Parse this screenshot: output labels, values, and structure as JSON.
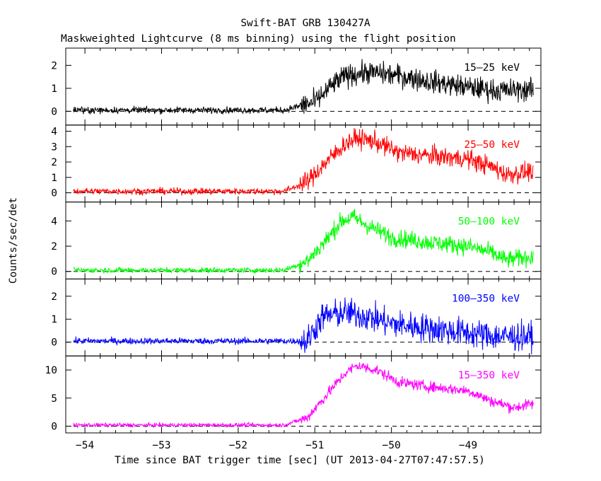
{
  "chart_data": {
    "type": "line",
    "title": "Swift-BAT GRB 130427A",
    "subtitle": "Maskweighted Lightcurve (8 ms binning) using the flight position",
    "xlabel": "Time since BAT trigger time [sec] (UT 2013-04-27T07:47:57.5)",
    "ylabel": "Counts/sec/det",
    "xlim": [
      -54.25,
      -48.05
    ],
    "xticks": [
      -54,
      -53,
      -52,
      -51,
      -50,
      -49
    ],
    "xtick_labels": [
      "−54",
      "−53",
      "−52",
      "−51",
      "−50",
      "−49"
    ],
    "data_x_range": [
      -54.15,
      -48.15
    ],
    "panels": [
      {
        "name": "15–25 keV",
        "color": "#000000",
        "ylim": [
          -0.6,
          2.75
        ],
        "yticks": [
          0,
          1,
          2
        ],
        "profile": [
          [
            -54.15,
            0.05
          ],
          [
            -51.4,
            0.05
          ],
          [
            -51.0,
            0.4
          ],
          [
            -50.75,
            1.2
          ],
          [
            -50.6,
            1.55
          ],
          [
            -50.3,
            1.7
          ],
          [
            -49.9,
            1.55
          ],
          [
            -49.5,
            1.3
          ],
          [
            -49.0,
            1.05
          ],
          [
            -48.6,
            0.9
          ],
          [
            -48.15,
            0.95
          ]
        ],
        "noise_pre": 0.1,
        "noise_post": 0.35
      },
      {
        "name": "25–50 keV",
        "color": "#ff0000",
        "ylim": [
          -0.6,
          4.4
        ],
        "yticks": [
          0,
          1,
          2,
          3,
          4
        ],
        "profile": [
          [
            -54.15,
            0.1
          ],
          [
            -51.4,
            0.1
          ],
          [
            -51.1,
            0.7
          ],
          [
            -50.85,
            2.0
          ],
          [
            -50.6,
            3.2
          ],
          [
            -50.45,
            3.55
          ],
          [
            -50.2,
            3.3
          ],
          [
            -49.9,
            2.6
          ],
          [
            -49.5,
            2.4
          ],
          [
            -49.0,
            2.2
          ],
          [
            -48.7,
            1.7
          ],
          [
            -48.5,
            1.2
          ],
          [
            -48.15,
            1.4
          ]
        ],
        "noise_pre": 0.15,
        "noise_post": 0.45
      },
      {
        "name": "50–100 keV",
        "color": "#00ff00",
        "ylim": [
          -0.6,
          5.5
        ],
        "yticks": [
          0,
          2,
          4
        ],
        "profile": [
          [
            -54.15,
            0.1
          ],
          [
            -51.4,
            0.1
          ],
          [
            -51.1,
            0.8
          ],
          [
            -50.85,
            2.5
          ],
          [
            -50.65,
            4.0
          ],
          [
            -50.5,
            4.3
          ],
          [
            -50.3,
            3.6
          ],
          [
            -50.0,
            2.7
          ],
          [
            -49.5,
            2.3
          ],
          [
            -49.0,
            2.0
          ],
          [
            -48.7,
            1.5
          ],
          [
            -48.5,
            0.9
          ],
          [
            -48.15,
            1.2
          ]
        ],
        "noise_pre": 0.15,
        "noise_post": 0.5
      },
      {
        "name": "100–350 keV",
        "color": "#0000ff",
        "ylim": [
          -0.6,
          2.75
        ],
        "yticks": [
          0,
          1,
          2
        ],
        "profile": [
          [
            -54.15,
            0.05
          ],
          [
            -51.1,
            0.05
          ],
          [
            -51.0,
            0.6
          ],
          [
            -50.9,
            1.1
          ],
          [
            -50.6,
            1.3
          ],
          [
            -50.3,
            1.1
          ],
          [
            -50.0,
            0.8
          ],
          [
            -49.5,
            0.6
          ],
          [
            -49.0,
            0.4
          ],
          [
            -48.6,
            0.25
          ],
          [
            -48.15,
            0.25
          ]
        ],
        "noise_pre": 0.1,
        "noise_post": 0.45
      },
      {
        "name": "15–350 keV",
        "color": "#ff00ff",
        "ylim": [
          -1.2,
          12.5
        ],
        "yticks": [
          0,
          5,
          10
        ],
        "profile": [
          [
            -54.15,
            0.2
          ],
          [
            -51.4,
            0.2
          ],
          [
            -51.1,
            1.5
          ],
          [
            -50.85,
            5.5
          ],
          [
            -50.6,
            9.5
          ],
          [
            -50.45,
            10.8
          ],
          [
            -50.2,
            10.0
          ],
          [
            -49.9,
            7.8
          ],
          [
            -49.5,
            7.0
          ],
          [
            -49.0,
            6.3
          ],
          [
            -48.7,
            4.5
          ],
          [
            -48.4,
            3.3
          ],
          [
            -48.15,
            4.0
          ]
        ],
        "noise_pre": 0.25,
        "noise_post": 0.7
      }
    ]
  }
}
